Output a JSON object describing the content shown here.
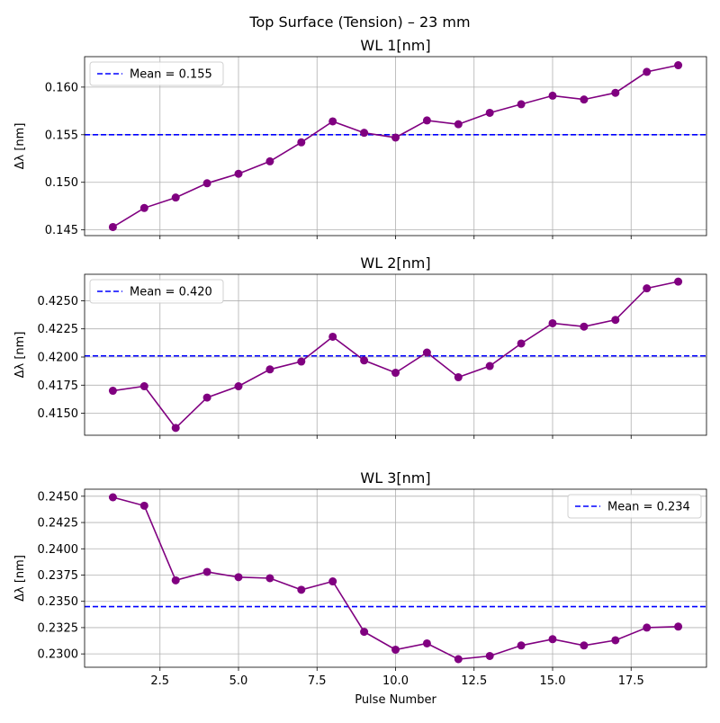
{
  "figure": {
    "suptitle": "Top Surface (Tension) – 23 mm",
    "xlabel": "Pulse Number"
  },
  "colors": {
    "line": "#800080",
    "mean": "#0000ff",
    "grid": "#b0b0b0"
  },
  "chart_data": [
    {
      "type": "line",
      "title": "WL 1[nm]",
      "ylabel": "Δλ [nm]",
      "x": [
        1,
        2,
        3,
        4,
        5,
        6,
        7,
        8,
        9,
        10,
        11,
        12,
        13,
        14,
        15,
        16,
        17,
        18,
        19
      ],
      "values": [
        0.1453,
        0.1473,
        0.1484,
        0.1499,
        0.1509,
        0.1522,
        0.1542,
        0.1564,
        0.1552,
        0.1547,
        0.1565,
        0.1561,
        0.1573,
        0.1582,
        0.1591,
        0.1587,
        0.1594,
        0.1616,
        0.1623
      ],
      "mean": 0.155,
      "mean_label": "Mean = 0.155",
      "legend_position": "upper-left",
      "xlim": [
        0.1,
        19.9
      ],
      "ylim": [
        0.1444,
        0.1632
      ],
      "xticks": [
        2.5,
        5.0,
        7.5,
        10.0,
        12.5,
        15.0,
        17.5
      ],
      "yticks": [
        0.145,
        0.15,
        0.155,
        0.16
      ],
      "ytick_labels": [
        "0.145",
        "0.150",
        "0.155",
        "0.160"
      ],
      "grid": true
    },
    {
      "type": "line",
      "title": "WL 2[nm]",
      "ylabel": "Δλ [nm]",
      "x": [
        1,
        2,
        3,
        4,
        5,
        6,
        7,
        8,
        9,
        10,
        11,
        12,
        13,
        14,
        15,
        16,
        17,
        18,
        19
      ],
      "values": [
        0.417,
        0.4174,
        0.4137,
        0.4164,
        0.4174,
        0.4189,
        0.4196,
        0.4218,
        0.4197,
        0.4186,
        0.4204,
        0.4182,
        0.4192,
        0.4212,
        0.423,
        0.4227,
        0.4233,
        0.4261,
        0.4267
      ],
      "mean": 0.4201,
      "mean_label": "Mean = 0.420",
      "legend_position": "upper-left",
      "xlim": [
        0.1,
        19.9
      ],
      "ylim": [
        0.41305,
        0.42735
      ],
      "xticks": [
        2.5,
        5.0,
        7.5,
        10.0,
        12.5,
        15.0,
        17.5
      ],
      "yticks": [
        0.415,
        0.4175,
        0.42,
        0.4225,
        0.425
      ],
      "ytick_labels": [
        "0.4150",
        "0.4175",
        "0.4200",
        "0.4225",
        "0.4250"
      ],
      "grid": true
    },
    {
      "type": "line",
      "title": "WL 3[nm]",
      "ylabel": "Δλ [nm]",
      "x": [
        1,
        2,
        3,
        4,
        5,
        6,
        7,
        8,
        9,
        10,
        11,
        12,
        13,
        14,
        15,
        16,
        17,
        18,
        19
      ],
      "values": [
        0.2449,
        0.2441,
        0.237,
        0.2378,
        0.2373,
        0.2372,
        0.2361,
        0.2369,
        0.2321,
        0.2304,
        0.231,
        0.2295,
        0.2298,
        0.2308,
        0.2314,
        0.2308,
        0.2313,
        0.2325,
        0.2326
      ],
      "mean": 0.2345,
      "mean_label": "Mean = 0.234",
      "legend_position": "upper-right",
      "xlim": [
        0.1,
        19.9
      ],
      "ylim": [
        0.22873,
        0.24567
      ],
      "xticks": [
        2.5,
        5.0,
        7.5,
        10.0,
        12.5,
        15.0,
        17.5
      ],
      "xtick_labels": [
        "2.5",
        "5.0",
        "7.5",
        "10.0",
        "12.5",
        "15.0",
        "17.5"
      ],
      "yticks": [
        0.23,
        0.2325,
        0.235,
        0.2375,
        0.24,
        0.2425,
        0.245
      ],
      "ytick_labels": [
        "0.2300",
        "0.2325",
        "0.2350",
        "0.2375",
        "0.2400",
        "0.2425",
        "0.2450"
      ],
      "grid": true
    }
  ]
}
